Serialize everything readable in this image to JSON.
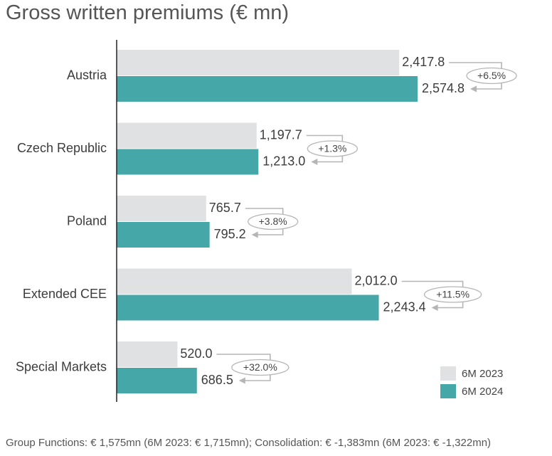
{
  "title": "Gross written premiums (€ mn)",
  "footnote": "Group Functions: € 1,575mn (6M 2023: € 1,715mn); Consolidation: € -1,383mn (6M 2023: € -1,322mn)",
  "chart_data": {
    "type": "bar",
    "orientation": "horizontal",
    "categories": [
      "Austria",
      "Czech Republic",
      "Poland",
      "Extended CEE",
      "Special Markets"
    ],
    "series": [
      {
        "name": "6M 2023",
        "values": [
          2417.8,
          1197.7,
          765.7,
          2012.0,
          520.0
        ],
        "labels": [
          "2,417.8",
          "1,197.7",
          "765.7",
          "2,012.0",
          "520.0"
        ]
      },
      {
        "name": "6M 2024",
        "values": [
          2574.8,
          1213.0,
          795.2,
          2243.4,
          686.5
        ],
        "labels": [
          "2,574.8",
          "1,213.0",
          "795.2",
          "2,243.4",
          "686.5"
        ]
      }
    ],
    "changes": [
      "+6.5%",
      "+1.3%",
      "+3.8%",
      "+11.5%",
      "+32.0%"
    ],
    "legend": "bottom-right",
    "colors": {
      "6M 2023": "#e0e1e2",
      "6M 2024": "#46a7a8",
      "connector": "#b5b5b5",
      "axis": "#222222"
    },
    "grid": false
  }
}
